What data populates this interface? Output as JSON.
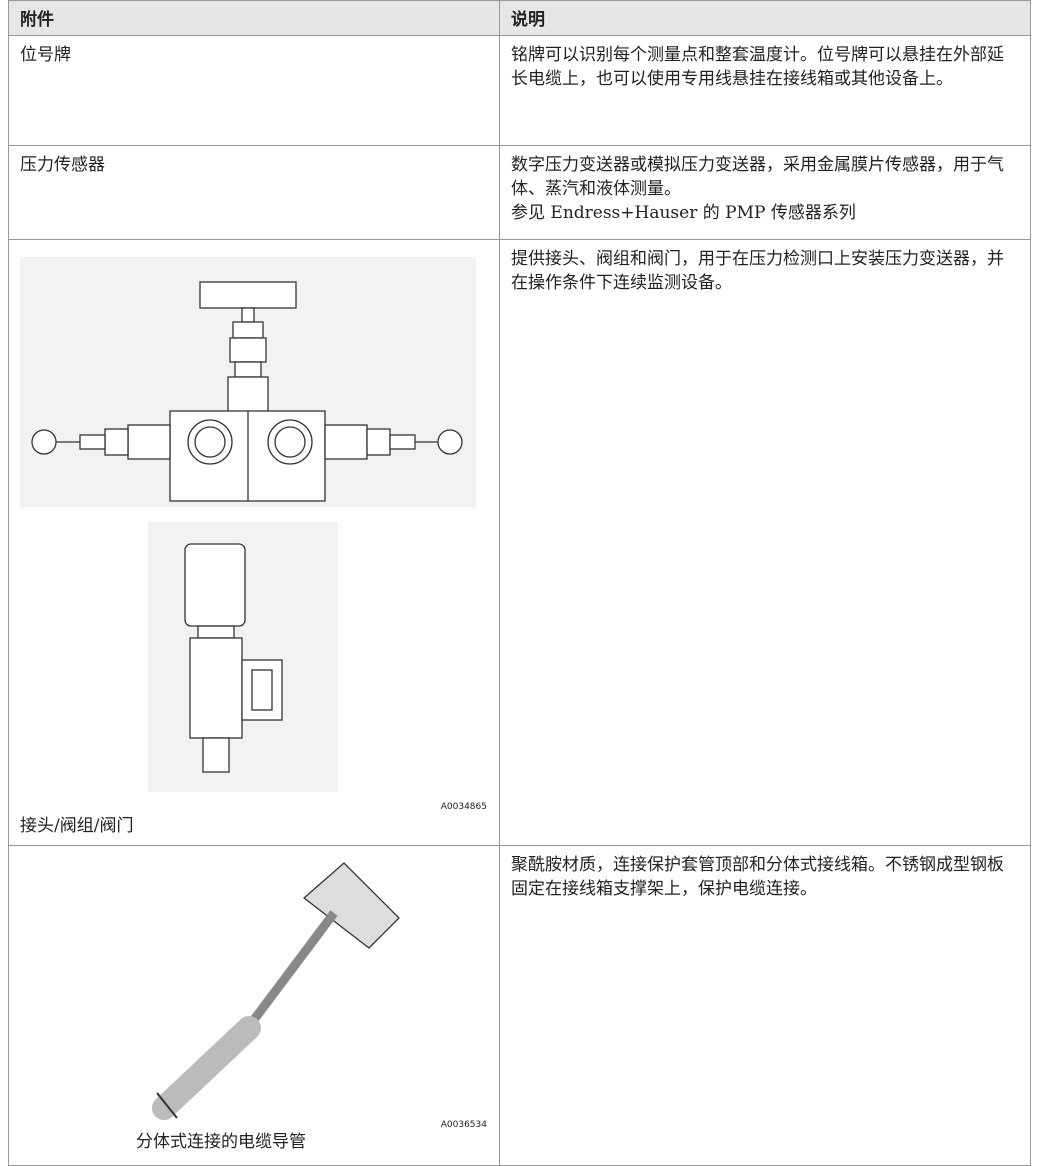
{
  "table": {
    "header": [
      "附件",
      "说明"
    ],
    "rows": [
      {
        "item": "位号牌",
        "description": [
          "铭牌可以识别每个测量点和整套温度计。位号牌可以悬挂在外部延长电缆上，也可以使用专用线悬挂在接线箱或其他设备上。"
        ]
      },
      {
        "item": "压力传感器",
        "description": [
          "数字压力变送器或模拟压力变送器，采用金属膜片传感器，用于气体、蒸汽和液体测量。",
          "参见 Endress+Hauser 的 PMP 传感器系列"
        ]
      },
      {
        "item": "接头/阀组/阀门",
        "figure_code": "A0034865",
        "description": [
          "提供接头、阀组和阀门，用于在压力检测口上安装压力变送器，并在操作条件下连续监测设备。"
        ]
      },
      {
        "item": "分体式连接的电缆导管",
        "figure_code": "A0036534",
        "description": [
          "聚酰胺材质，连接保护套管顶部和分体式接线箱。不锈钢成型钢板固定在接线箱支撑架上，保护电缆连接。"
        ]
      }
    ]
  }
}
